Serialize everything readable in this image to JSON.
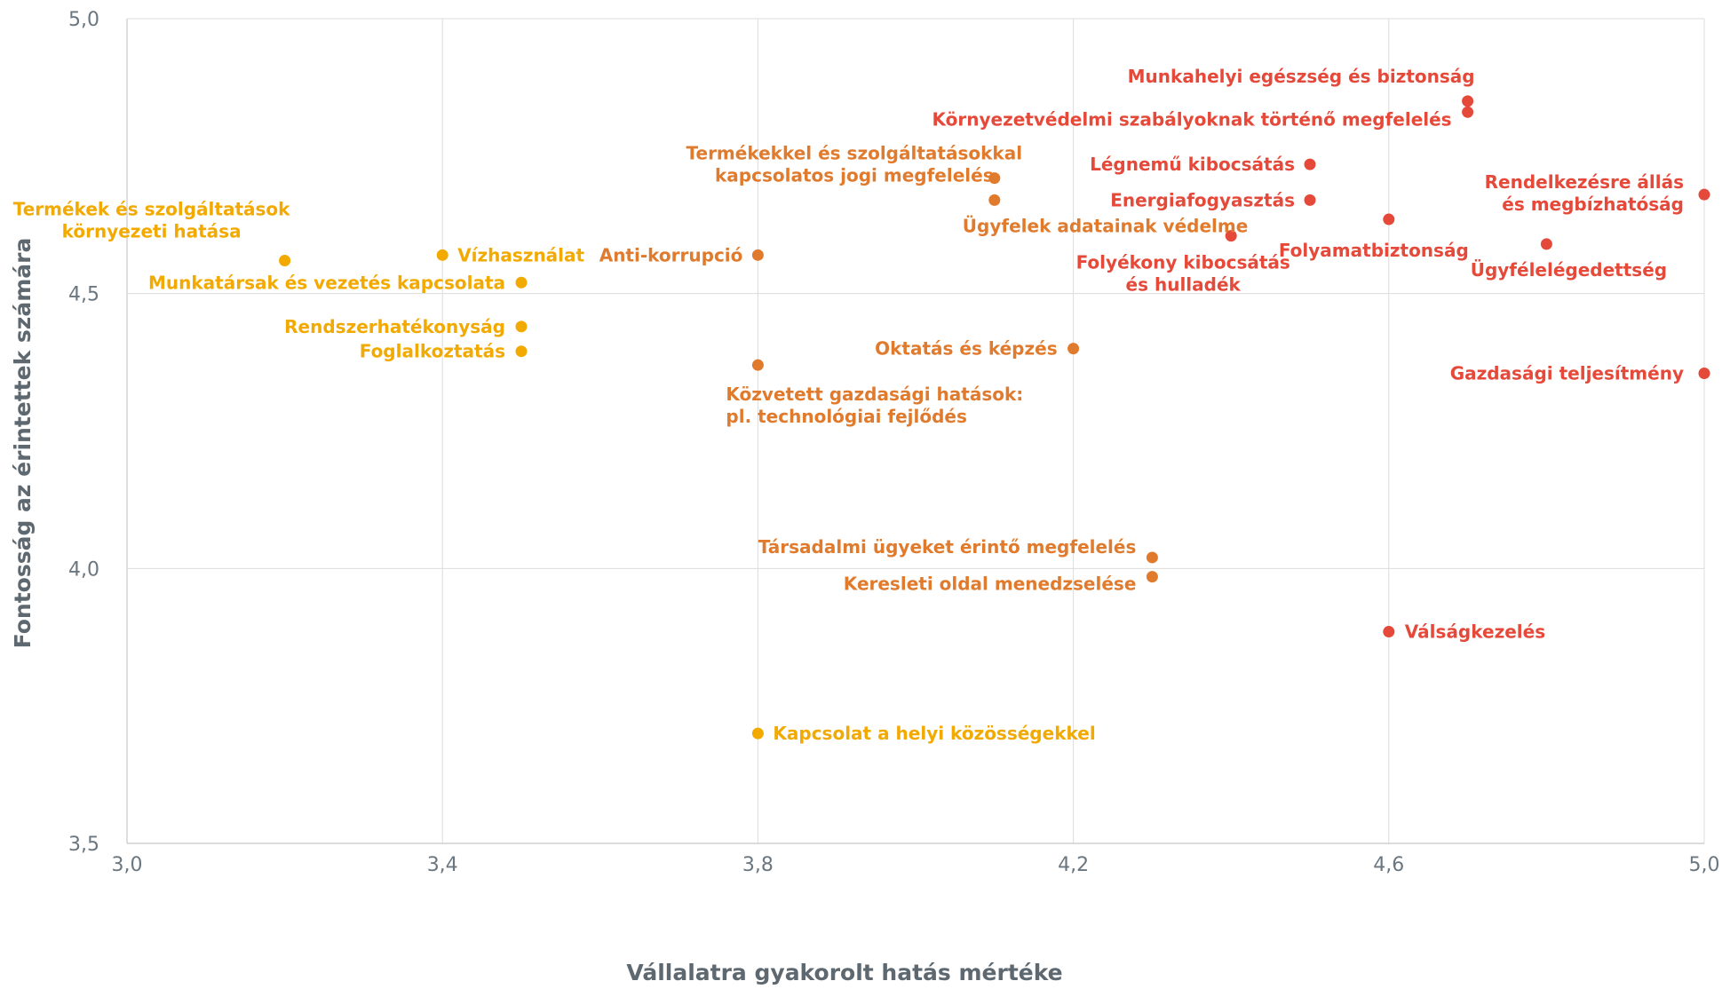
{
  "chart_data": {
    "type": "scatter",
    "title": "",
    "xlabel": "Vállalatra gyakorolt hatás mértéke",
    "ylabel": "Fontosság az érintettek számára",
    "xlim": [
      3.0,
      5.0
    ],
    "ylim": [
      3.5,
      5.0
    ],
    "xticks": [
      "3,0",
      "3,4",
      "3,8",
      "4,2",
      "4,6",
      "5,0"
    ],
    "yticks": [
      "3,5",
      "4,0",
      "4,5",
      "5,0"
    ],
    "grid": true,
    "colors": {
      "yellow": "#f2a900",
      "orange": "#e07b2e",
      "red": "#e5493a"
    },
    "points": [
      {
        "lines": [
          "Termékek és szolgáltatások",
          "környezeti hatása"
        ],
        "x": 3.2,
        "y": 4.56,
        "color": "yellow"
      },
      {
        "lines": [
          "Vízhasználat"
        ],
        "x": 3.4,
        "y": 4.57,
        "color": "yellow"
      },
      {
        "lines": [
          "Munkatársak és vezetés kapcsolata"
        ],
        "x": 3.5,
        "y": 4.52,
        "color": "yellow"
      },
      {
        "lines": [
          "Rendszerhatékonyság"
        ],
        "x": 3.5,
        "y": 4.44,
        "color": "yellow"
      },
      {
        "lines": [
          "Foglalkoztatás"
        ],
        "x": 3.5,
        "y": 4.395,
        "color": "yellow"
      },
      {
        "lines": [
          "Kapcsolat a helyi közösségekkel"
        ],
        "x": 3.8,
        "y": 3.7,
        "color": "yellow"
      },
      {
        "lines": [
          "Anti-korrupció"
        ],
        "x": 3.8,
        "y": 4.57,
        "color": "orange"
      },
      {
        "lines": [
          "Közvetett gazdasági hatások:",
          "pl. technológiai fejlődés"
        ],
        "x": 3.8,
        "y": 4.37,
        "color": "orange"
      },
      {
        "lines": [
          "Termékekkel és szolgáltatásokkal",
          "kapcsolatos jogi megfelelés"
        ],
        "x": 4.1,
        "y": 4.71,
        "color": "orange"
      },
      {
        "lines": [
          "Ügyfelek adatainak védelme"
        ],
        "x": 4.1,
        "y": 4.67,
        "color": "orange"
      },
      {
        "lines": [
          "Oktatás és képzés"
        ],
        "x": 4.2,
        "y": 4.4,
        "color": "orange"
      },
      {
        "lines": [
          "Társadalmi ügyeket érintő megfelelés"
        ],
        "x": 4.3,
        "y": 4.02,
        "color": "orange"
      },
      {
        "lines": [
          "Keresleti oldal menedzselése"
        ],
        "x": 4.3,
        "y": 3.985,
        "color": "orange"
      },
      {
        "lines": [
          "Folyékony kibocsátás",
          "és hulladék"
        ],
        "x": 4.4,
        "y": 4.605,
        "color": "red"
      },
      {
        "lines": [
          "Légnemű kibocsátás"
        ],
        "x": 4.5,
        "y": 4.735,
        "color": "red"
      },
      {
        "lines": [
          "Energiafogyasztás"
        ],
        "x": 4.5,
        "y": 4.67,
        "color": "red"
      },
      {
        "lines": [
          "Folyamatbiztonság"
        ],
        "x": 4.6,
        "y": 4.635,
        "color": "red"
      },
      {
        "lines": [
          "Válságkezelés"
        ],
        "x": 4.6,
        "y": 3.885,
        "color": "red"
      },
      {
        "lines": [
          "Munkahelyi egészség és biztonság"
        ],
        "x": 4.7,
        "y": 4.85,
        "color": "red"
      },
      {
        "lines": [
          "Környezetvédelmi szabályoknak történő megfelelés"
        ],
        "x": 4.7,
        "y": 4.83,
        "color": "red"
      },
      {
        "lines": [
          "Ügyfélelégedettség"
        ],
        "x": 4.8,
        "y": 4.59,
        "color": "red"
      },
      {
        "lines": [
          "Rendelkezésre állás",
          "és megbízhatóság"
        ],
        "x": 5.0,
        "y": 4.68,
        "color": "red"
      },
      {
        "lines": [
          "Gazdasági teljesítmény"
        ],
        "x": 5.0,
        "y": 4.355,
        "color": "red"
      }
    ]
  }
}
